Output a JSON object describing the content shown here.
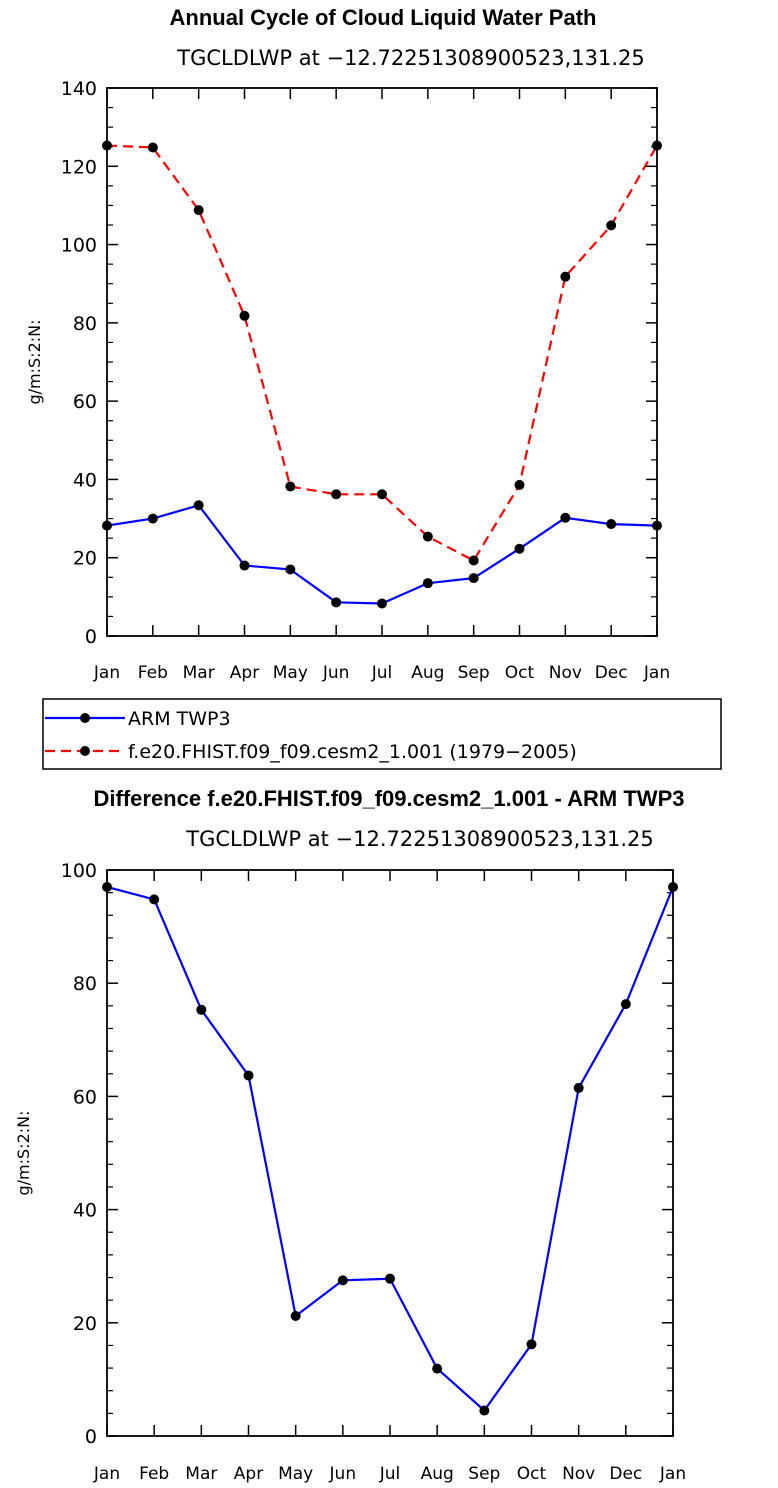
{
  "chart_data": [
    {
      "type": "line",
      "title": "Annual Cycle of Cloud Liquid Water Path",
      "subtitle": "TGCLDLWP at −12.72251308900523,131.25",
      "xlabel": "",
      "ylabel": "g/m:S:2:N:",
      "categories": [
        "Jan",
        "Feb",
        "Mar",
        "Apr",
        "May",
        "Jun",
        "Jul",
        "Aug",
        "Sep",
        "Oct",
        "Nov",
        "Dec",
        "Jan"
      ],
      "ylim": [
        0,
        140
      ],
      "yticks": [
        "0",
        "20",
        "40",
        "60",
        "80",
        "100",
        "120",
        "140"
      ],
      "series": [
        {
          "name": "ARM TWP3",
          "color": "#0000ff",
          "dash": "solid",
          "values": [
            28.2,
            30.0,
            33.4,
            18.0,
            17.0,
            8.6,
            8.3,
            13.5,
            14.8,
            22.3,
            30.2,
            28.6,
            28.2
          ]
        },
        {
          "name": "f.e20.FHIST.f09_f09.cesm2_1.001 (1979−2005)",
          "color": "#ff0000",
          "dash": "dashed",
          "values": [
            125.3,
            124.8,
            108.8,
            81.8,
            38.2,
            36.2,
            36.2,
            25.4,
            19.3,
            38.6,
            91.8,
            104.9,
            125.3
          ]
        }
      ]
    },
    {
      "type": "line",
      "title": "Difference f.e20.FHIST.f09_f09.cesm2_1.001 - ARM TWP3",
      "subtitle": "TGCLDLWP at −12.72251308900523,131.25",
      "xlabel": "",
      "ylabel": "g/m:S:2:N:",
      "categories": [
        "Jan",
        "Feb",
        "Mar",
        "Apr",
        "May",
        "Jun",
        "Jul",
        "Aug",
        "Sep",
        "Oct",
        "Nov",
        "Dec",
        "Jan"
      ],
      "ylim": [
        0,
        100
      ],
      "yticks": [
        "0",
        "20",
        "40",
        "60",
        "80",
        "100"
      ],
      "series": [
        {
          "name": "Difference",
          "color": "#0000ff",
          "dash": "solid",
          "values": [
            97.0,
            94.8,
            75.3,
            63.7,
            21.2,
            27.5,
            27.8,
            11.9,
            4.5,
            16.2,
            61.5,
            76.3,
            97.0
          ]
        }
      ]
    }
  ]
}
